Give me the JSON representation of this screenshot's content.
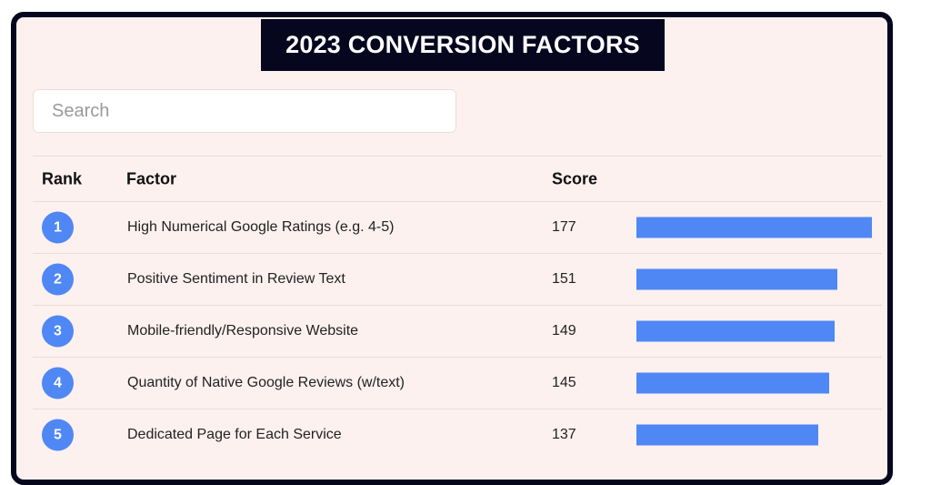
{
  "title": "2023 CONVERSION FACTORS",
  "search": {
    "placeholder": "Search",
    "value": ""
  },
  "table": {
    "headers": {
      "rank": "Rank",
      "factor": "Factor",
      "score": "Score"
    },
    "rows": [
      {
        "rank": "1",
        "factor": "High Numerical Google Ratings (e.g. 4-5)",
        "score": "177"
      },
      {
        "rank": "2",
        "factor": "Positive Sentiment in Review Text",
        "score": "151"
      },
      {
        "rank": "3",
        "factor": "Mobile-friendly/Responsive Website",
        "score": "149"
      },
      {
        "rank": "4",
        "factor": "Quantity of Native Google Reviews (w/text)",
        "score": "145"
      },
      {
        "rank": "5",
        "factor": "Dedicated Page for Each Service",
        "score": "137"
      }
    ],
    "bar_max_score": 177
  },
  "colors": {
    "accent": "#4f87f5",
    "frame": "#06061f",
    "background": "#fcf1ef"
  }
}
